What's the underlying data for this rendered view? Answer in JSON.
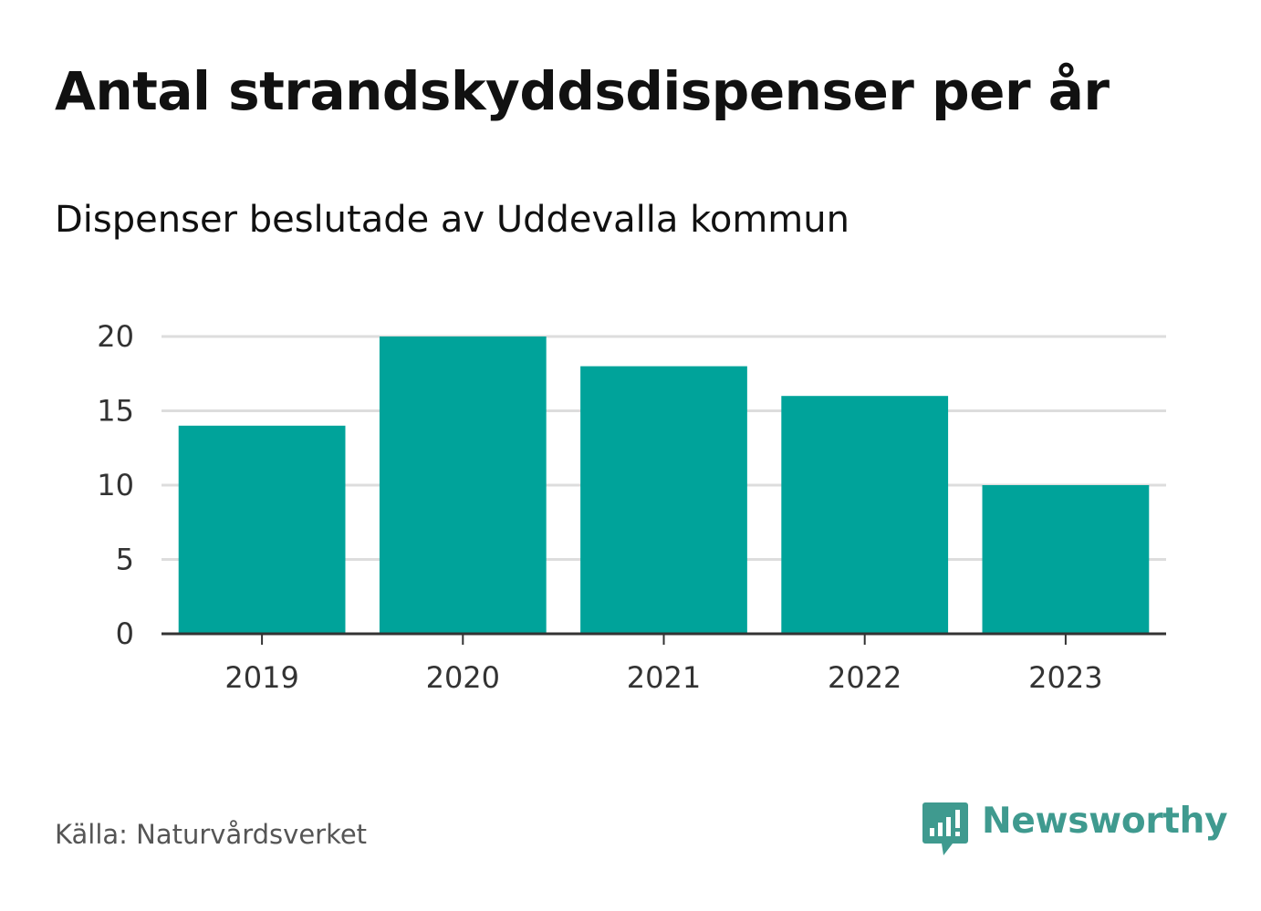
{
  "chart_data": {
    "type": "bar",
    "title": "Antal strandskyddsdispenser per år",
    "subtitle": "Dispenser beslutade av Uddevalla kommun",
    "categories": [
      "2019",
      "2020",
      "2021",
      "2022",
      "2023"
    ],
    "values": [
      14,
      20,
      18,
      16,
      10
    ],
    "xlabel": "",
    "ylabel": "",
    "ylim": [
      0,
      20
    ],
    "yticks": [
      0,
      5,
      10,
      15,
      20
    ],
    "grid": true,
    "legend": "none",
    "colors": {
      "bar": "#00a39a",
      "grid": "#dddddd",
      "axis": "#333333"
    }
  },
  "source": "Källa: Naturvårdsverket",
  "brand": {
    "name": "Newsworthy",
    "icon": "newsworthy-logo-icon",
    "color": "#3f9a8f"
  }
}
